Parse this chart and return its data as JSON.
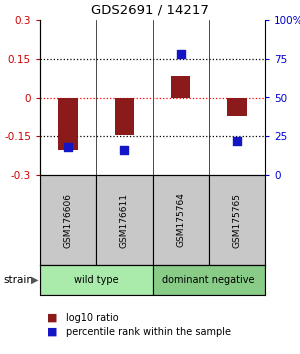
{
  "title": "GDS2691 / 14217",
  "samples": [
    "GSM176606",
    "GSM176611",
    "GSM175764",
    "GSM175765"
  ],
  "log10_ratio": [
    -0.205,
    -0.145,
    0.082,
    -0.072
  ],
  "percentile_rank": [
    18,
    16,
    78,
    22
  ],
  "ylim_left": [
    -0.3,
    0.3
  ],
  "ylim_right": [
    0,
    100
  ],
  "yticks_left": [
    -0.3,
    -0.15,
    0,
    0.15,
    0.3
  ],
  "yticks_right": [
    0,
    25,
    50,
    75,
    100
  ],
  "ytick_labels_right": [
    "0",
    "25",
    "50",
    "75",
    "100%"
  ],
  "hlines": [
    -0.15,
    0.0,
    0.15
  ],
  "hline_colors": [
    "black",
    "red",
    "black"
  ],
  "hline_styles": [
    "dotted",
    "dotted",
    "dotted"
  ],
  "bar_color": "#8B1A1A",
  "bar_width": 0.35,
  "dot_color": "#1515C8",
  "dot_size": 40,
  "groups": [
    {
      "label": "wild type",
      "indices": [
        0,
        1
      ],
      "color": "#AAEAAA"
    },
    {
      "label": "dominant negative",
      "indices": [
        2,
        3
      ],
      "color": "#88CC88"
    }
  ],
  "strain_label": "strain",
  "legend_bar_label": "log10 ratio",
  "legend_dot_label": "percentile rank within the sample",
  "left_axis_color": "#CC0000",
  "right_axis_color": "#0000CC",
  "sample_box_color": "#C8C8C8",
  "background_color": "#ffffff"
}
